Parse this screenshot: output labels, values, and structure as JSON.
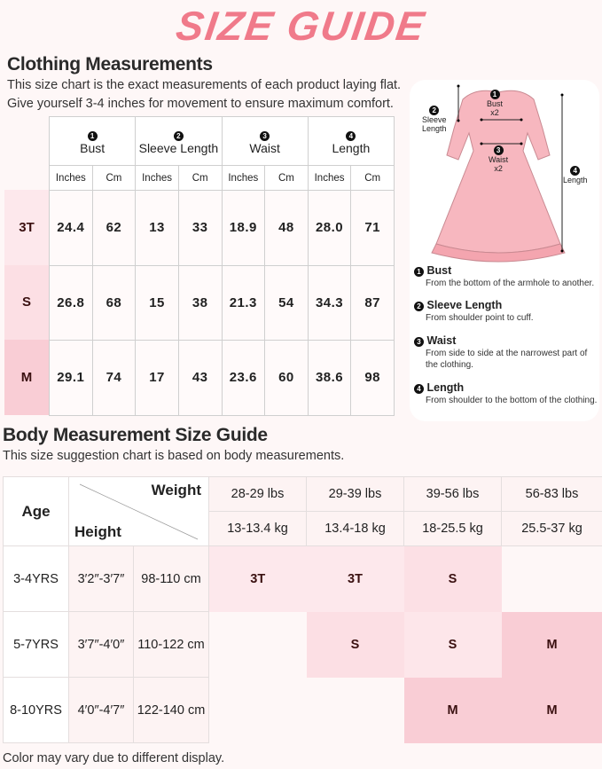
{
  "title": "SIZE GUIDE",
  "clothing": {
    "heading": "Clothing Measurements",
    "subtitle_1": "This size chart is the exact measurements of each product laying flat.",
    "subtitle_2": "Give yourself 3-4 inches for movement to ensure maximum comfort.",
    "columns": [
      {
        "num": "1",
        "label": "Bust"
      },
      {
        "num": "2",
        "label": "Sleeve Length"
      },
      {
        "num": "3",
        "label": "Waist"
      },
      {
        "num": "4",
        "label": "Length"
      }
    ],
    "units": [
      "Inches",
      "Cm"
    ],
    "rows": [
      {
        "size": "3T",
        "values": [
          "24.4",
          "62",
          "13",
          "33",
          "18.9",
          "48",
          "28.0",
          "71"
        ]
      },
      {
        "size": "S",
        "values": [
          "26.8",
          "68",
          "15",
          "38",
          "21.3",
          "54",
          "34.3",
          "87"
        ]
      },
      {
        "size": "M",
        "values": [
          "29.1",
          "74",
          "17",
          "43",
          "23.6",
          "60",
          "38.6",
          "98"
        ]
      }
    ]
  },
  "diagram": {
    "labels": {
      "bust": "Bust",
      "bust_x": "x2",
      "sleeve_1": "Sleeve",
      "sleeve_2": "Length",
      "waist": "Waist",
      "waist_x": "x2",
      "length": "Length"
    },
    "definitions": [
      {
        "num": "1",
        "term": "Bust",
        "desc": "From the bottom of the armhole to another."
      },
      {
        "num": "2",
        "term": "Sleeve Length",
        "desc": "From shoulder point to cuff."
      },
      {
        "num": "3",
        "term": "Waist",
        "desc": "From side to side at the narrowest part of the clothing."
      },
      {
        "num": "4",
        "term": "Length",
        "desc": "From shoulder to the bottom of the clothing."
      }
    ]
  },
  "body": {
    "heading": "Body Measurement Size Guide",
    "subtitle": "This size suggestion chart is based on body measurements.",
    "age_label": "Age",
    "weight_label": "Weight",
    "height_label": "Height",
    "weights_lbs": [
      "28-29 lbs",
      "29-39 lbs",
      "39-56 lbs",
      "56-83 lbs"
    ],
    "weights_kg": [
      "13-13.4 kg",
      "13.4-18 kg",
      "18-25.5 kg",
      "25.5-37 kg"
    ],
    "rows": [
      {
        "age": "3-4YRS",
        "height_ft": "3′2″-3′7″",
        "height_cm": "98-110 cm",
        "sizes": [
          "3T",
          "3T",
          "S",
          ""
        ]
      },
      {
        "age": "5-7YRS",
        "height_ft": "3′7″-4′0″",
        "height_cm": "110-122 cm",
        "sizes": [
          "",
          "S",
          "S",
          "M"
        ]
      },
      {
        "age": "8-10YRS",
        "height_ft": "4′0″-4′7″",
        "height_cm": "122-140 cm",
        "sizes": [
          "",
          "",
          "M",
          "M"
        ]
      }
    ]
  },
  "footer": "Color may vary due to different display.",
  "colors": {
    "title": "#f07a8a",
    "size_3T": "#fde8ec",
    "size_S": "#fcdfe4",
    "size_M": "#f9cdd5",
    "background": "#fef7f7"
  }
}
